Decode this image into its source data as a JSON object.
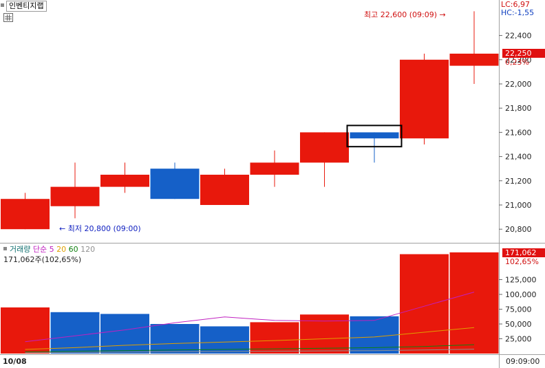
{
  "title": "인벤티지랩",
  "indicators": {
    "lc": "LC:6,97",
    "hc": "HC:-1,55"
  },
  "high_annotation": "최고 22,600 (09:09)",
  "low_annotation": "최저 20,800 (09:00)",
  "current_price": {
    "value": "22,250",
    "change": "0,23%"
  },
  "volume_header": {
    "title": "거래량",
    "ma_label": "단순",
    "ma_periods": [
      "5",
      "20",
      "60",
      "120"
    ],
    "readout": "171,062주(102,65%)"
  },
  "current_volume": {
    "value": "171,062",
    "ratio": "102,65%"
  },
  "date_label": "10/08",
  "time_label": "09:09:00",
  "colors": {
    "up": "#e8180c",
    "down": "#1560c8",
    "ma5": "#c020c0",
    "ma20": "#e0a000",
    "ma60": "#108010",
    "ma120": "#909090"
  },
  "chart_data": [
    {
      "type": "candlestick",
      "y_ticks": [
        "20,800",
        "21,000",
        "21,200",
        "21,400",
        "21,600",
        "21,800",
        "22,000",
        "22,200",
        "22,400"
      ],
      "ylim": [
        20700,
        22650
      ],
      "candles": [
        {
          "open": 20800,
          "high": 21100,
          "low": 20800,
          "close": 21050
        },
        {
          "open": 20990,
          "high": 21350,
          "low": 20890,
          "close": 21150
        },
        {
          "open": 21150,
          "high": 21350,
          "low": 21100,
          "close": 21250
        },
        {
          "open": 21300,
          "high": 21350,
          "low": 21050,
          "close": 21050
        },
        {
          "open": 21000,
          "high": 21300,
          "low": 21000,
          "close": 21250
        },
        {
          "open": 21250,
          "high": 21450,
          "low": 21150,
          "close": 21350
        },
        {
          "open": 21350,
          "high": 21600,
          "low": 21150,
          "close": 21600
        },
        {
          "open": 21600,
          "high": 21600,
          "low": 21350,
          "close": 21550
        },
        {
          "open": 21550,
          "high": 22250,
          "low": 21500,
          "close": 22200
        },
        {
          "open": 22150,
          "high": 22600,
          "low": 22000,
          "close": 22250
        }
      ],
      "highlighted_index": 7
    },
    {
      "type": "bar",
      "y_ticks": [
        "25,000",
        "50,000",
        "75,000",
        "100,000",
        "125,000"
      ],
      "ylim": [
        0,
        175000
      ],
      "volumes": [
        78000,
        70000,
        67000,
        50000,
        46000,
        53000,
        66000,
        63000,
        168000,
        171062
      ],
      "directions": [
        "up",
        "down",
        "down",
        "down",
        "down",
        "up",
        "up",
        "down",
        "up",
        "up"
      ],
      "ma5": [
        20000,
        30000,
        40000,
        52000,
        62000,
        56000,
        55000,
        56000,
        80000,
        104000
      ],
      "ma20": [
        7000,
        10000,
        14000,
        17000,
        19500,
        22000,
        25000,
        28000,
        36000,
        44000
      ],
      "ma60": [
        3000,
        4000,
        5000,
        6000,
        7000,
        8000,
        9000,
        10000,
        12000,
        15000
      ],
      "ma120": [
        1500,
        2000,
        2500,
        3000,
        3500,
        4000,
        4500,
        5000,
        6000,
        7500
      ]
    }
  ]
}
